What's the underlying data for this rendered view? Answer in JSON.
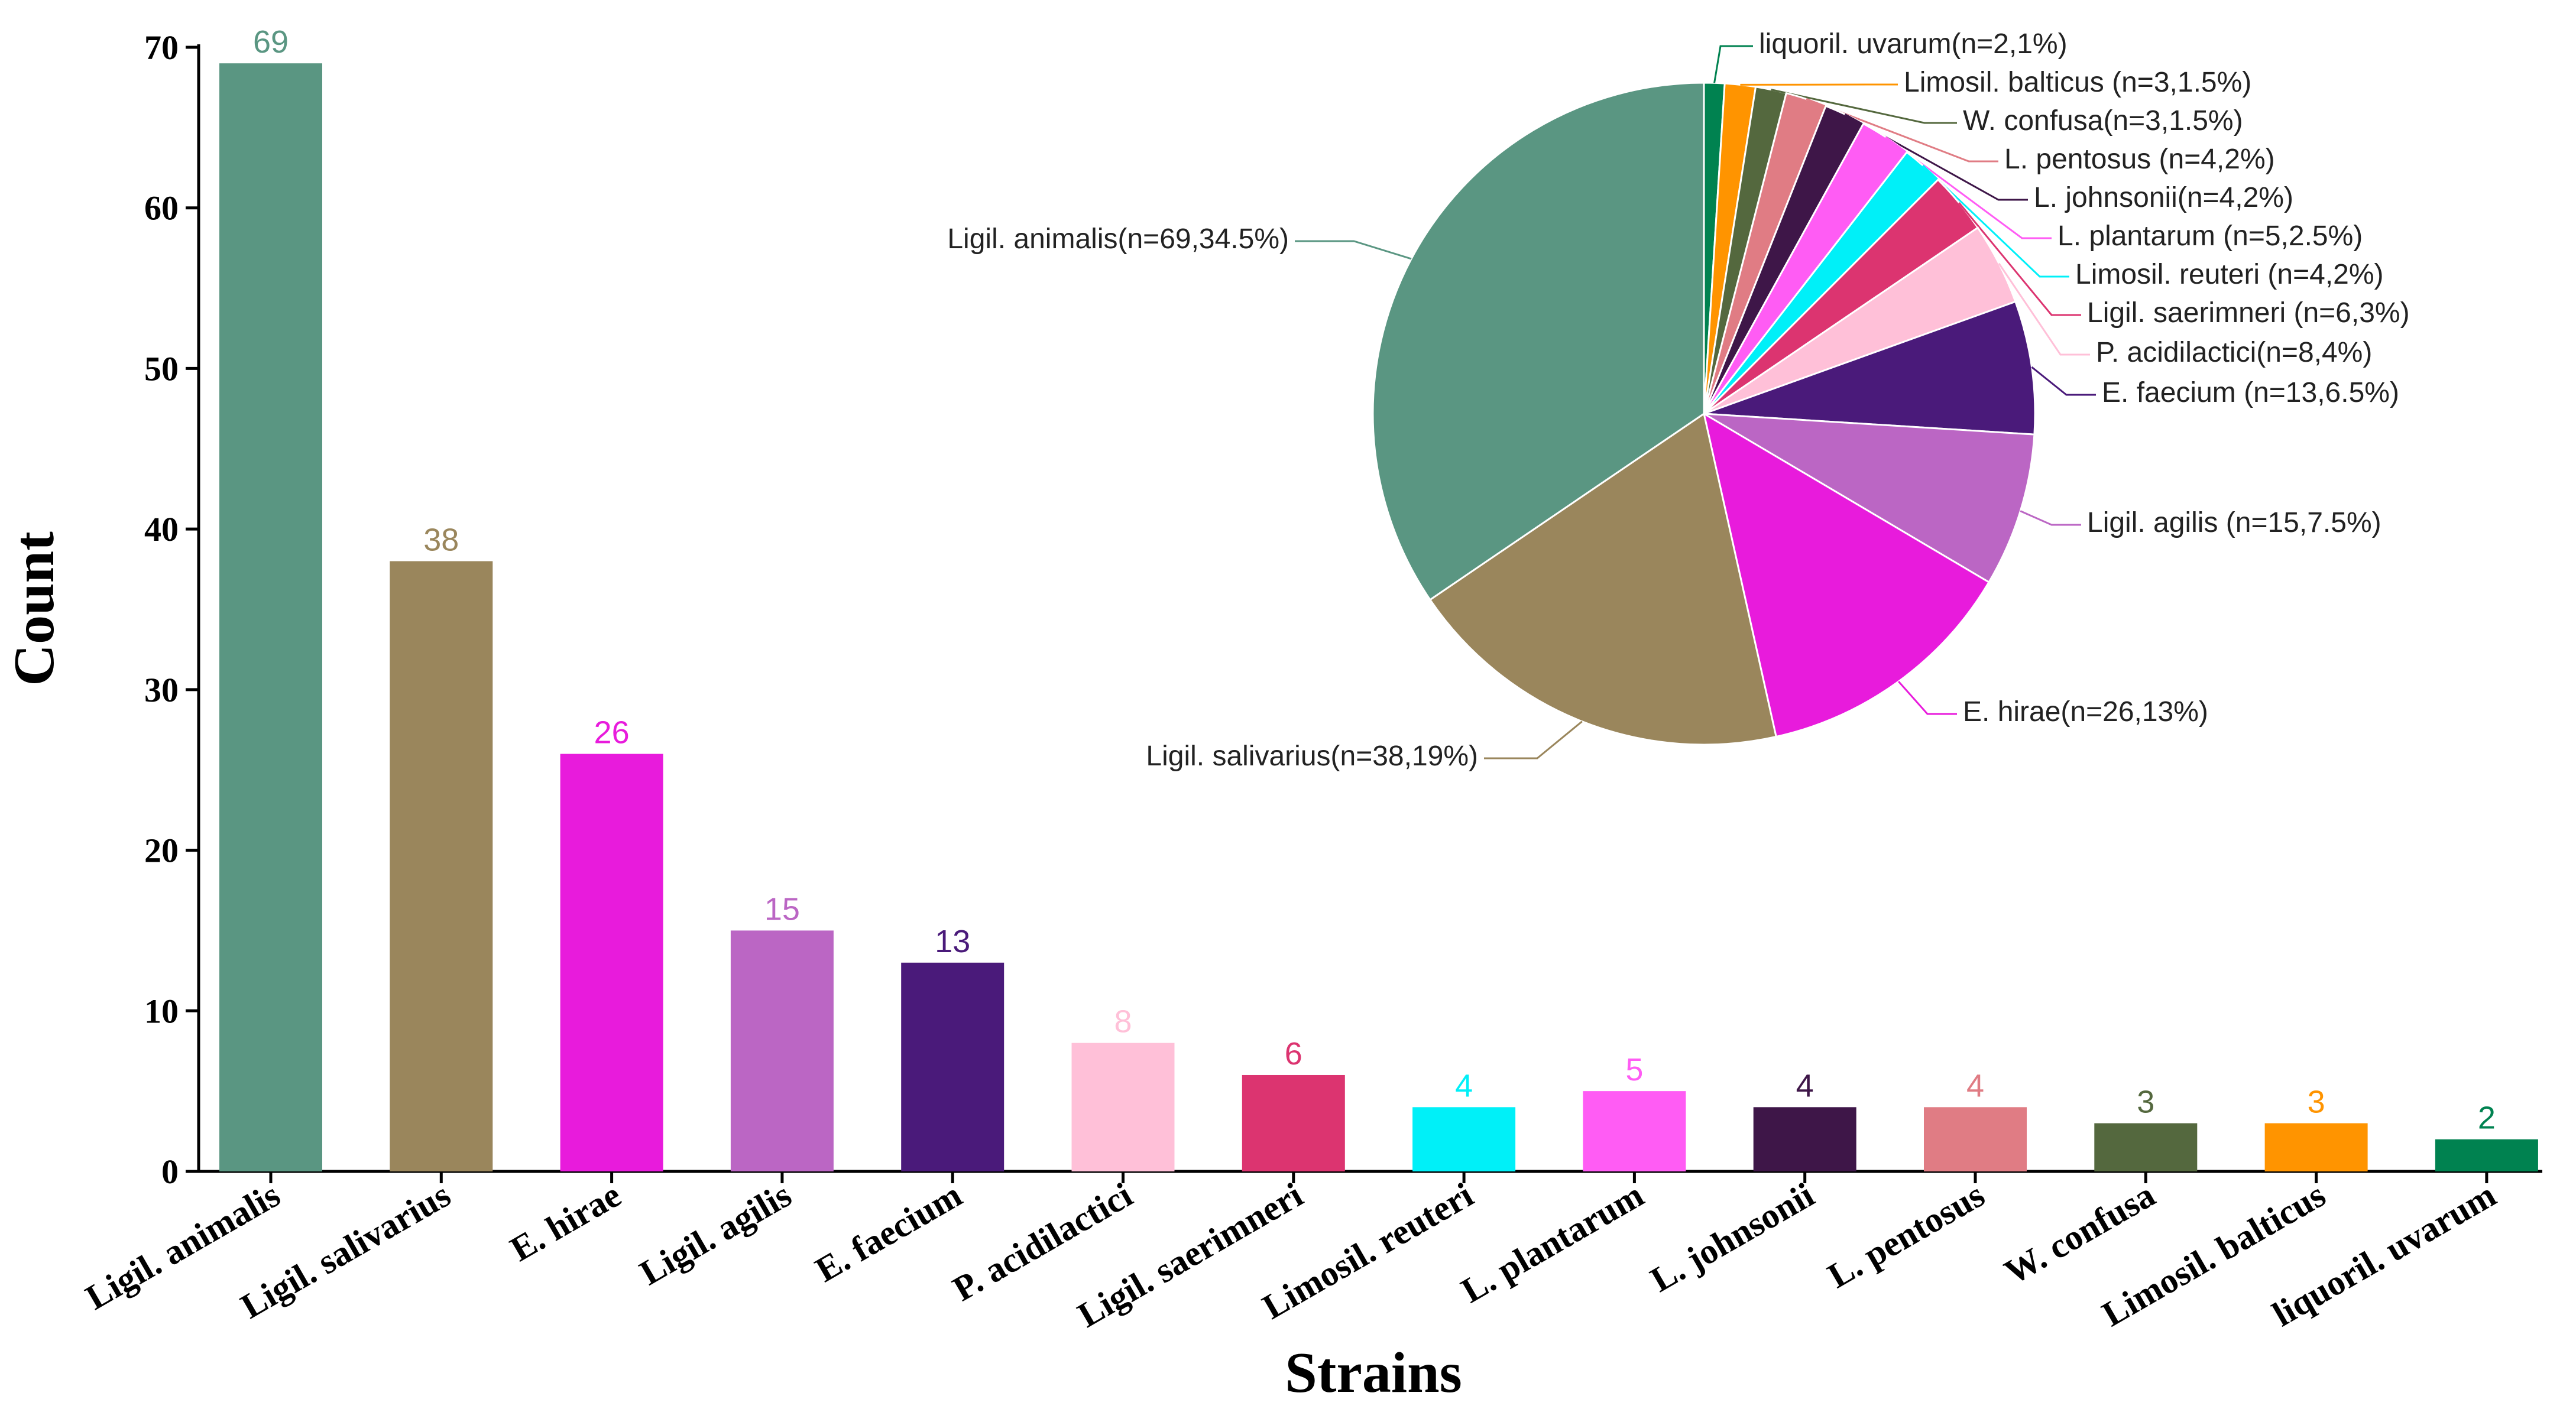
{
  "chart_data": [
    {
      "type": "bar",
      "xlabel": "Strains",
      "ylabel": "Count",
      "ylim": [
        0,
        70
      ],
      "yticks": [
        0,
        10,
        20,
        30,
        40,
        50,
        60,
        70
      ],
      "categories": [
        "Ligil. animalis",
        "Ligil. salivarius",
        "E. hirae",
        "Ligil. agilis",
        "E. faecium",
        "P. acidilactici",
        "Ligil. saerimneri",
        "Limosil. reuteri",
        "L. plantarum",
        "L. johnsonii",
        "L. pentosus",
        "W. confusa",
        "Limosil. balticus",
        "liquoril. uvarum"
      ],
      "values": [
        69,
        38,
        26,
        15,
        13,
        8,
        6,
        4,
        5,
        4,
        4,
        3,
        3,
        2
      ],
      "value_labels": [
        "69",
        "38",
        "26",
        "15",
        "13",
        "8",
        "6",
        "4",
        "5",
        "4",
        "4",
        "3",
        "3",
        "2"
      ],
      "colors": [
        "#5a9682",
        "#9a865c",
        "#e81bdc",
        "#bb66c4",
        "#4a1a7a",
        "#ffc0d8",
        "#dc3470",
        "#00f0f8",
        "#ff5cf4",
        "#3e1648",
        "#e07c84",
        "#54683e",
        "#ff9400",
        "#008250"
      ]
    },
    {
      "type": "pie",
      "slices": [
        {
          "name": "liquoril. uvarum",
          "value": 2,
          "percent": 1,
          "label": "liquoril. uvarum(n=2,1%)",
          "color": "#008250"
        },
        {
          "name": "Limosil. balticus",
          "value": 3,
          "percent": 1.5,
          "label": "Limosil. balticus (n=3,1.5%)",
          "color": "#ff9400"
        },
        {
          "name": "W. confusa",
          "value": 3,
          "percent": 1.5,
          "label": "W. confusa(n=3,1.5%)",
          "color": "#54683e"
        },
        {
          "name": "L. pentosus",
          "value": 4,
          "percent": 2,
          "label": "L. pentosus (n=4,2%)",
          "color": "#e07c84"
        },
        {
          "name": "L. johnsonii",
          "value": 4,
          "percent": 2,
          "label": "L. johnsonii(n=4,2%)",
          "color": "#3e1648"
        },
        {
          "name": "L. plantarum",
          "value": 5,
          "percent": 2.5,
          "label": "L. plantarum (n=5,2.5%)",
          "color": "#ff5cf4"
        },
        {
          "name": "Limosil. reuteri",
          "value": 4,
          "percent": 2,
          "label": "Limosil. reuteri (n=4,2%)",
          "color": "#00f0f8"
        },
        {
          "name": "Ligil. saerimneri",
          "value": 6,
          "percent": 3,
          "label": "Ligil. saerimneri (n=6,3%)",
          "color": "#dc3470"
        },
        {
          "name": "P. acidilactici",
          "value": 8,
          "percent": 4,
          "label": "P. acidilactici(n=8,4%)",
          "color": "#ffc0d8"
        },
        {
          "name": "E. faecium",
          "value": 13,
          "percent": 6.5,
          "label": "E. faecium (n=13,6.5%)",
          "color": "#4a1a7a"
        },
        {
          "name": "Ligil. agilis",
          "value": 15,
          "percent": 7.5,
          "label": "Ligil. agilis (n=15,7.5%)",
          "color": "#bb66c4"
        },
        {
          "name": "E. hirae",
          "value": 26,
          "percent": 13,
          "label": "E. hirae(n=26,13%)",
          "color": "#e81bdc"
        },
        {
          "name": "Ligil. salivarius",
          "value": 38,
          "percent": 19,
          "label": "Ligil. salivarius(n=38,19%)",
          "color": "#9a865c"
        },
        {
          "name": "Ligil. animalis",
          "value": 69,
          "percent": 34.5,
          "label": "Ligil. animalis(n=69,34.5%)",
          "color": "#5a9682"
        }
      ]
    }
  ]
}
